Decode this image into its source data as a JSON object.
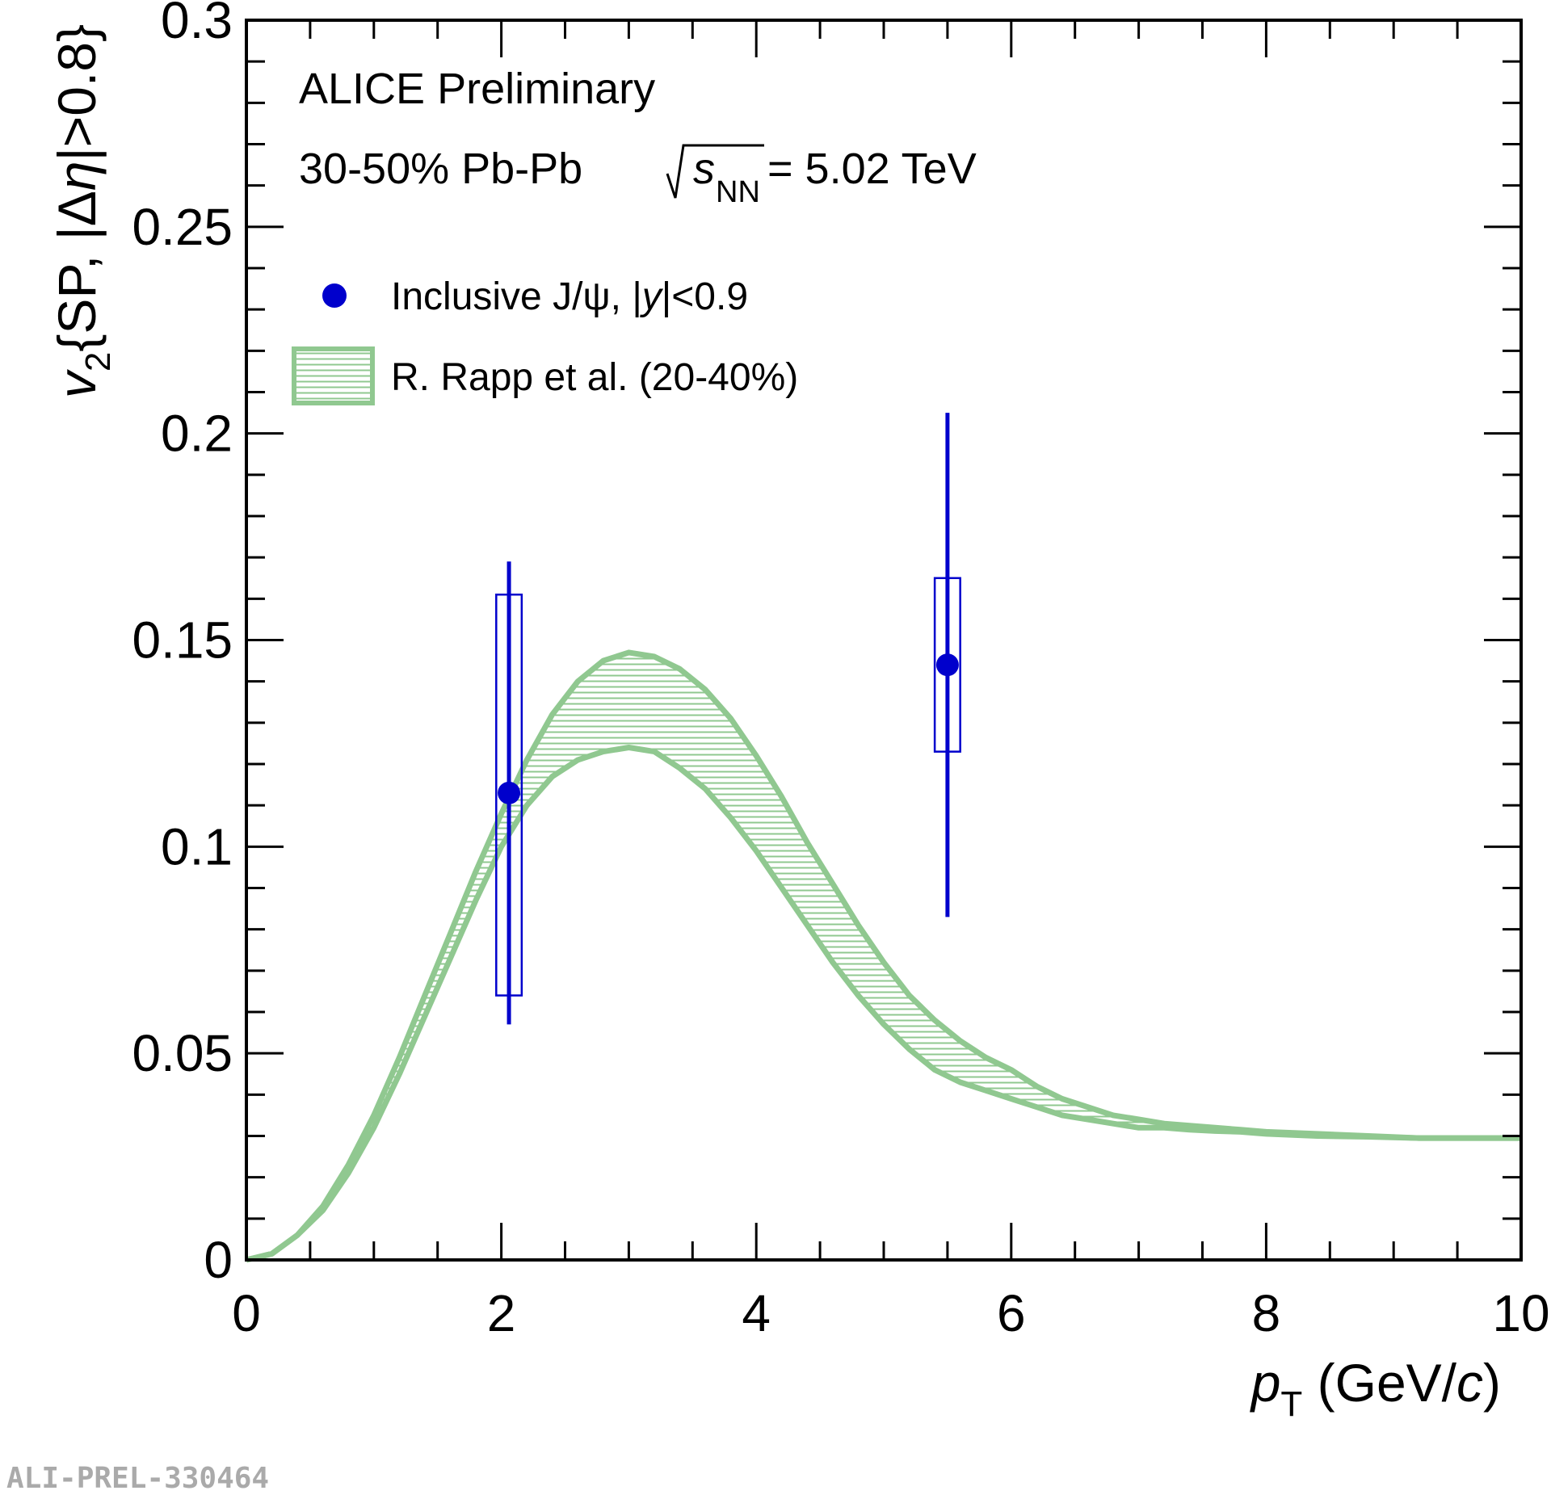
{
  "chart_data": {
    "type": "scatter",
    "x_range": [
      0,
      10
    ],
    "y_range": [
      0,
      0.3
    ],
    "x_ticks": [
      0,
      2,
      4,
      6,
      8,
      10
    ],
    "x_tick_labels": [
      "0",
      "2",
      "4",
      "6",
      "8",
      "10"
    ],
    "y_ticks": [
      0,
      0.05,
      0.1,
      0.15,
      0.2,
      0.25,
      0.3
    ],
    "y_tick_labels": [
      "0",
      "0.05",
      "0.1",
      "0.15",
      "0.2",
      "0.25",
      "0.3"
    ],
    "xlabel": {
      "main": "p",
      "sub": "T",
      "units_open": " (GeV/",
      "units_c": "c",
      "units_close": ")"
    },
    "ylabel": {
      "v": "v",
      "sub": "2",
      "rest1": "{SP, |Δ",
      "eta": "η",
      "rest2": "|>0.8}"
    },
    "header": {
      "line1": "ALICE Preliminary",
      "line2_left": "30-50%  Pb-Pb",
      "sqrt_s": "s",
      "sqrt_sub": "NN",
      "sqrt_value": " = 5.02 TeV"
    },
    "legend": {
      "data_pre": "Inclusive J/ψ, |",
      "data_italic": "y",
      "data_post": "|<0.9",
      "band_label": "R. Rapp et al. (20-40%)"
    },
    "series": [
      {
        "name": "Inclusive J/ψ, |y|<0.9",
        "kind": "points",
        "color": "#0000cc",
        "points": [
          {
            "x": 2.06,
            "y": 0.113,
            "stat_low": 0.057,
            "stat_high": 0.169,
            "syst_low": 0.064,
            "syst_high": 0.161,
            "box_x_low": 1.96,
            "box_x_high": 2.16
          },
          {
            "x": 5.5,
            "y": 0.144,
            "stat_low": 0.083,
            "stat_high": 0.205,
            "syst_low": 0.123,
            "syst_high": 0.165,
            "box_x_low": 5.4,
            "box_x_high": 5.6
          }
        ]
      },
      {
        "name": "R. Rapp et al. (20-40%)",
        "kind": "band",
        "color": "#90c890",
        "x": [
          0,
          0.2,
          0.4,
          0.6,
          0.8,
          1.0,
          1.2,
          1.4,
          1.6,
          1.8,
          2.0,
          2.2,
          2.4,
          2.6,
          2.8,
          3.0,
          3.2,
          3.4,
          3.6,
          3.8,
          4.0,
          4.2,
          4.4,
          4.6,
          4.8,
          5.0,
          5.2,
          5.4,
          5.6,
          5.8,
          6.0,
          6.2,
          6.4,
          6.6,
          6.8,
          7.0,
          7.2,
          7.4,
          7.6,
          7.8,
          8.0,
          8.4,
          8.8,
          9.2,
          9.6,
          10.0
        ],
        "upper": [
          0.0,
          0.0015,
          0.006,
          0.013,
          0.023,
          0.035,
          0.049,
          0.064,
          0.079,
          0.094,
          0.108,
          0.121,
          0.132,
          0.14,
          0.145,
          0.147,
          0.146,
          0.143,
          0.138,
          0.131,
          0.122,
          0.112,
          0.101,
          0.091,
          0.081,
          0.072,
          0.064,
          0.058,
          0.053,
          0.049,
          0.046,
          0.042,
          0.039,
          0.037,
          0.035,
          0.034,
          0.033,
          0.0325,
          0.032,
          0.0315,
          0.031,
          0.0305,
          0.03,
          0.0295,
          0.0295,
          0.0295
        ],
        "lower": [
          0.0,
          0.0015,
          0.006,
          0.012,
          0.021,
          0.032,
          0.045,
          0.059,
          0.073,
          0.087,
          0.1,
          0.11,
          0.117,
          0.121,
          0.123,
          0.124,
          0.123,
          0.119,
          0.114,
          0.107,
          0.099,
          0.09,
          0.081,
          0.072,
          0.064,
          0.057,
          0.051,
          0.046,
          0.043,
          0.041,
          0.039,
          0.037,
          0.035,
          0.034,
          0.033,
          0.032,
          0.032,
          0.0315,
          0.0312,
          0.031,
          0.0305,
          0.03,
          0.0298,
          0.0295,
          0.0295,
          0.0295
        ]
      }
    ]
  },
  "footer": {
    "id": "ALI-PREL-330464"
  },
  "colors": {
    "data": "#0000cc",
    "band": "#90c890",
    "axis": "#000000",
    "footer": "#aaaaaa"
  }
}
